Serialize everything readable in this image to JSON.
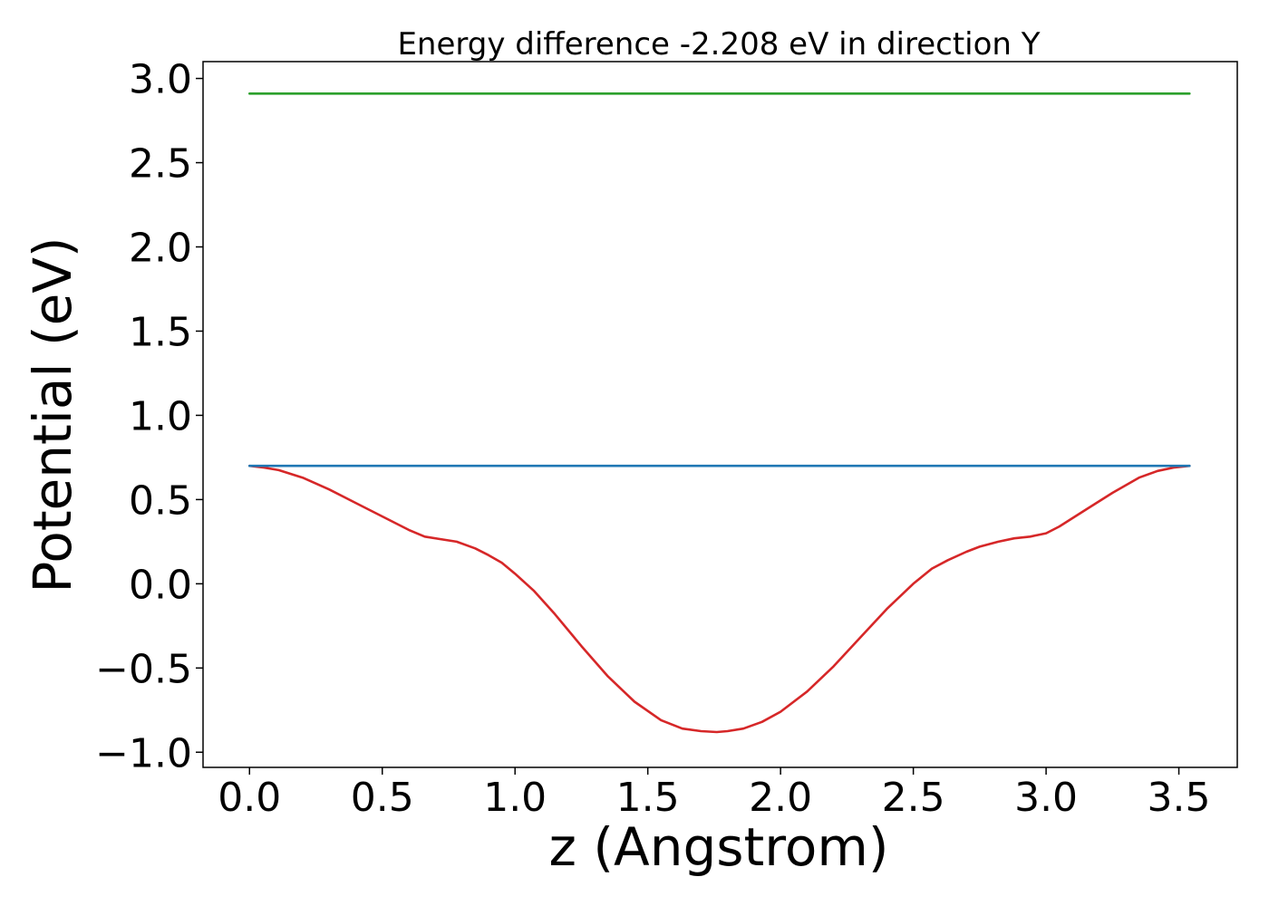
{
  "chart_data": {
    "type": "line",
    "title": "Energy difference -2.208 eV in direction Y",
    "xlabel": "z (Angstrom)",
    "ylabel": "Potential (eV)",
    "xlim": [
      -0.175,
      3.72
    ],
    "ylim": [
      -1.09,
      3.1
    ],
    "xticks": [
      0.0,
      0.5,
      1.0,
      1.5,
      2.0,
      2.5,
      3.0,
      3.5
    ],
    "xtick_labels": [
      "0.0",
      "0.5",
      "1.0",
      "1.5",
      "2.0",
      "2.5",
      "3.0",
      "3.5"
    ],
    "yticks": [
      3.0,
      2.5,
      2.0,
      1.5,
      1.0,
      0.5,
      0.0,
      -0.5,
      -1.0
    ],
    "ytick_labels": [
      "3.0",
      "2.5",
      "2.0",
      "1.5",
      "1.0",
      "0.5",
      "0.0",
      "−0.5",
      "−1.0"
    ],
    "grid": false,
    "series": [
      {
        "name": "potential-profile",
        "color": "#d62728",
        "x": [
          0.0,
          0.055,
          0.11,
          0.2,
          0.3,
          0.4,
          0.5,
          0.6,
          0.66,
          0.72,
          0.78,
          0.85,
          0.9,
          0.95,
          1.0,
          1.07,
          1.15,
          1.25,
          1.35,
          1.45,
          1.55,
          1.63,
          1.7,
          1.76,
          1.8,
          1.86,
          1.93,
          2.0,
          2.1,
          2.2,
          2.3,
          2.4,
          2.5,
          2.57,
          2.63,
          2.7,
          2.75,
          2.82,
          2.88,
          2.94,
          3.0,
          3.05,
          3.15,
          3.25,
          3.35,
          3.42,
          3.48,
          3.54
        ],
        "values": [
          0.7,
          0.69,
          0.675,
          0.63,
          0.56,
          0.48,
          0.4,
          0.32,
          0.28,
          0.265,
          0.25,
          0.21,
          0.17,
          0.125,
          0.06,
          -0.04,
          -0.18,
          -0.37,
          -0.55,
          -0.7,
          -0.81,
          -0.86,
          -0.875,
          -0.88,
          -0.875,
          -0.86,
          -0.82,
          -0.76,
          -0.64,
          -0.49,
          -0.32,
          -0.15,
          0.0,
          0.09,
          0.14,
          0.19,
          0.22,
          0.25,
          0.27,
          0.28,
          0.3,
          0.34,
          0.44,
          0.54,
          0.63,
          0.67,
          0.69,
          0.7
        ]
      },
      {
        "name": "blue-reference",
        "color": "#1f77b4",
        "x": [
          0.0,
          3.54
        ],
        "values": [
          0.7,
          0.7
        ]
      },
      {
        "name": "green-reference",
        "color": "#2ca02c",
        "x": [
          0.0,
          3.54
        ],
        "values": [
          2.91,
          2.91
        ]
      }
    ]
  }
}
